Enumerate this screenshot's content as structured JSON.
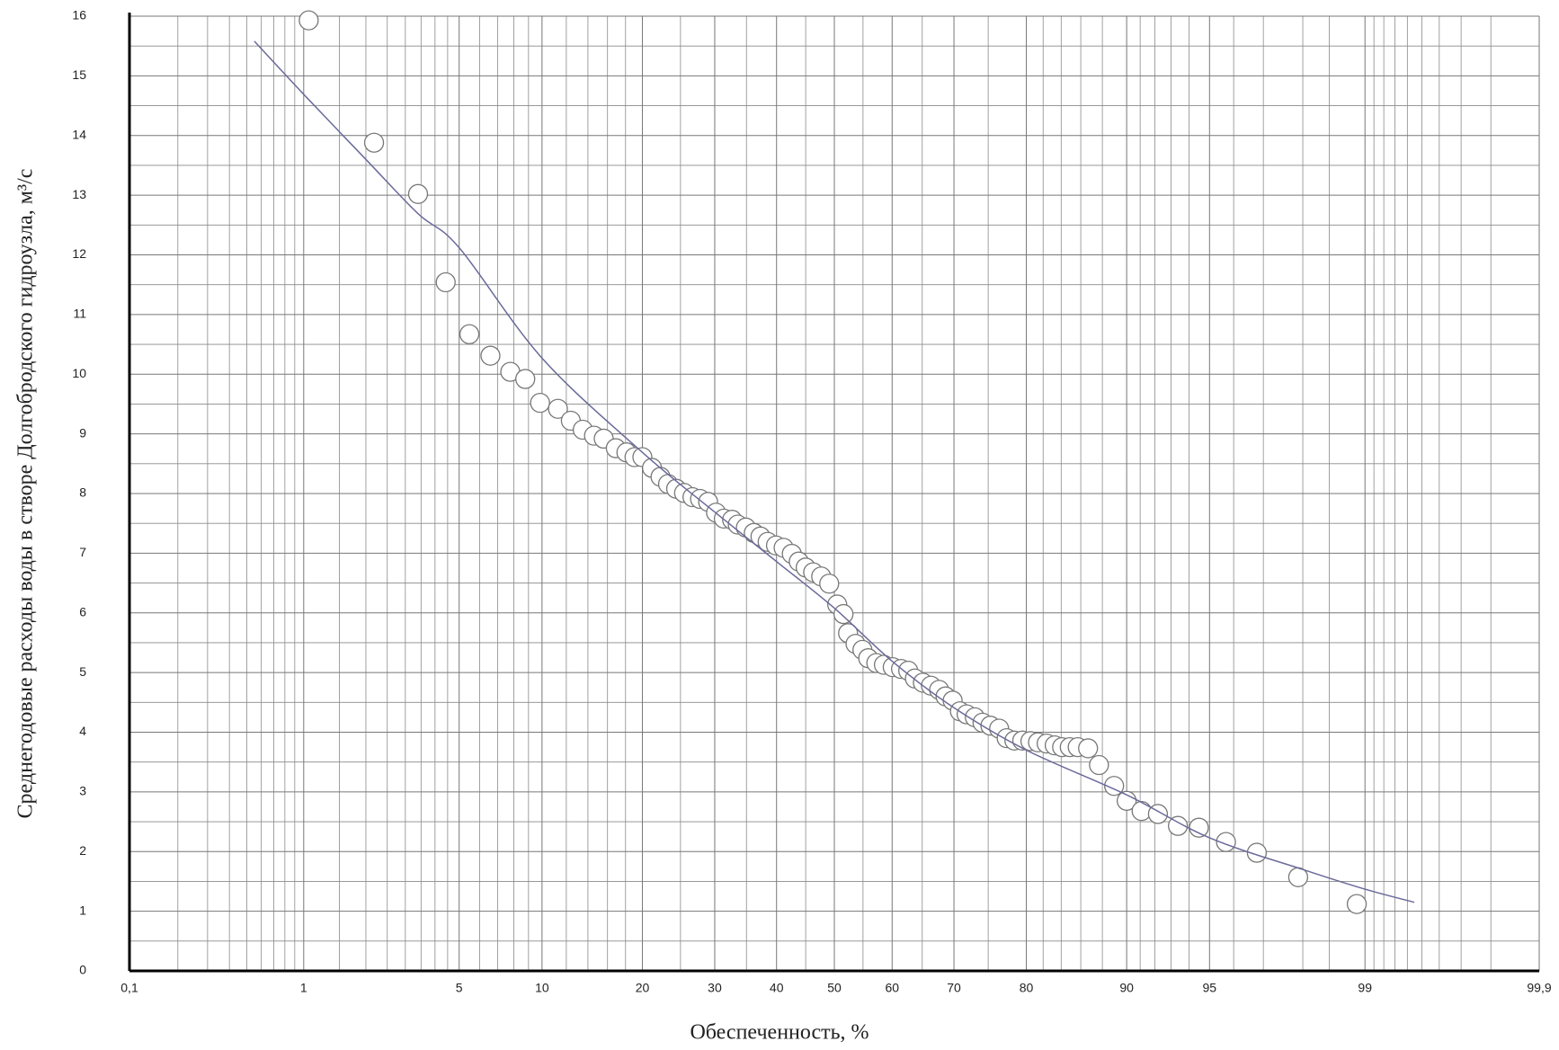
{
  "chart_data": {
    "type": "scatter",
    "x_label": "Обеспеченность, %",
    "y_label": "Среднегодовые расходы воды в створе Долгобродского гидроузла, м³/с",
    "x_scale": "probability",
    "xlim": [
      0.1,
      99.9
    ],
    "ylim": [
      0,
      16
    ],
    "xticks": [
      {
        "value": 0.1,
        "label": "0,1"
      },
      1,
      5,
      10,
      20,
      30,
      40,
      50,
      60,
      70,
      80,
      90,
      95,
      99,
      {
        "value": 99.9,
        "label": "99,9"
      }
    ],
    "yticks": [
      0,
      1,
      2,
      3,
      4,
      5,
      6,
      7,
      8,
      9,
      10,
      11,
      12,
      13,
      14,
      15,
      16
    ],
    "xminor": [
      0.2,
      0.3,
      0.4,
      0.5,
      0.6,
      0.7,
      0.8,
      0.9,
      1.5,
      2,
      2.5,
      3,
      3.5,
      4,
      4.5,
      6,
      7,
      8,
      9,
      12,
      14,
      16,
      18,
      25,
      35,
      45,
      55,
      65,
      75,
      82,
      84,
      86,
      88,
      91,
      92,
      93,
      94,
      96,
      97,
      98,
      98.5,
      99.1,
      99.2,
      99.3,
      99.4,
      99.5,
      99.6,
      99.7,
      99.8
    ],
    "yminor": [
      0.5,
      1.5,
      2.5,
      3.5,
      4.5,
      5.5,
      6.5,
      7.5,
      8.5,
      9.5,
      10.5,
      11.5,
      12.5,
      13.5,
      14.5,
      15.5
    ],
    "grid": true,
    "series": [
      {
        "type": "scatter",
        "color": "#777777",
        "x": [
          1.06,
          2.18,
          3.4,
          4.42,
          5.48,
          6.58,
          7.77,
          8.77,
          9.85,
          11.28,
          12.4,
          13.5,
          14.6,
          15.6,
          16.9,
          18.1,
          19.05,
          20.0,
          21.2,
          22.3,
          23.3,
          24.4,
          25.5,
          26.7,
          27.8,
          29.0,
          30.2,
          31.4,
          32.7,
          33.6,
          34.9,
          36.2,
          37.3,
          38.5,
          39.9,
          41.2,
          42.6,
          43.8,
          45.0,
          46.3,
          47.7,
          49.1,
          50.5,
          51.6,
          52.4,
          53.7,
          54.9,
          55.9,
          57.3,
          58.6,
          60.1,
          61.5,
          62.7,
          63.8,
          65.1,
          66.4,
          67.7,
          68.7,
          69.8,
          70.9,
          71.9,
          73.1,
          74.2,
          75.3,
          76.5,
          77.5,
          78.5,
          79.5,
          80.5,
          81.4,
          82.4,
          83.3,
          84.1,
          84.9,
          85.7,
          86.7,
          87.7,
          89.0,
          90.0,
          91.1,
          92.2,
          93.4,
          94.5,
          95.7,
          96.8,
          97.9,
          98.9
        ],
        "y": [
          15.93,
          13.88,
          13.02,
          11.54,
          10.67,
          10.31,
          10.04,
          9.92,
          9.52,
          9.42,
          9.22,
          9.07,
          8.97,
          8.92,
          8.76,
          8.69,
          8.61,
          8.61,
          8.43,
          8.28,
          8.16,
          8.08,
          8.01,
          7.94,
          7.91,
          7.86,
          7.68,
          7.58,
          7.56,
          7.48,
          7.43,
          7.34,
          7.28,
          7.19,
          7.13,
          7.09,
          6.99,
          6.86,
          6.76,
          6.68,
          6.61,
          6.49,
          6.14,
          5.98,
          5.66,
          5.48,
          5.38,
          5.24,
          5.16,
          5.13,
          5.09,
          5.06,
          5.03,
          4.9,
          4.83,
          4.78,
          4.71,
          4.6,
          4.53,
          4.35,
          4.3,
          4.25,
          4.16,
          4.11,
          4.06,
          3.9,
          3.86,
          3.86,
          3.85,
          3.83,
          3.81,
          3.78,
          3.75,
          3.75,
          3.75,
          3.73,
          3.45,
          3.1,
          2.85,
          2.68,
          2.63,
          2.43,
          2.4,
          2.16,
          1.98,
          1.57,
          1.12
        ]
      },
      {
        "type": "line",
        "color": "#6a6a9a",
        "x": [
          0.55,
          1,
          2,
          3.4,
          5,
          10,
          20,
          30,
          40,
          50,
          60,
          70,
          80,
          90,
          95,
          98,
          99,
          99.45
        ],
        "y": [
          15.58,
          14.69,
          13.6,
          12.69,
          12.12,
          10.27,
          8.69,
          7.69,
          6.86,
          6.08,
          5.19,
          4.41,
          3.7,
          2.95,
          2.23,
          1.7,
          1.37,
          1.15
        ]
      }
    ]
  }
}
